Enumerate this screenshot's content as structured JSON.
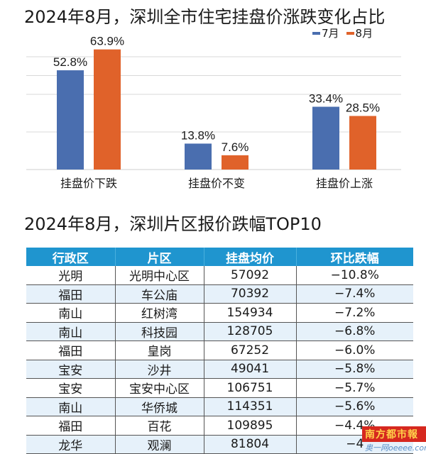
{
  "titles": {
    "chart_title": "2024年8月，深圳全市住宅挂盘价涨跌变化占比",
    "table_title": "2024年8月，深圳片区报价跌幅TOP10"
  },
  "colors": {
    "july": "#4a6eaf",
    "august": "#e0622a",
    "table_header": "#1f95cf",
    "table_alt_row": "#e6f1fa",
    "gridline": "#d9d9d9"
  },
  "legend": [
    {
      "label": "7月",
      "color": "#4a6eaf"
    },
    {
      "label": "8月",
      "color": "#e0622a"
    }
  ],
  "chart_data": {
    "type": "bar",
    "title": "2024年8月，深圳全市住宅挂盘价涨跌变化占比",
    "categories": [
      "挂盘价下跌",
      "挂盘价不变",
      "挂盘价上涨"
    ],
    "series": [
      {
        "name": "7月",
        "values": [
          52.8,
          13.8,
          33.4
        ],
        "labels": [
          "52.8%",
          "13.8%",
          "33.4%"
        ]
      },
      {
        "name": "8月",
        "values": [
          63.9,
          7.6,
          28.5
        ],
        "labels": [
          "63.9%",
          "7.6%",
          "28.5%"
        ]
      }
    ],
    "xlabel": "",
    "ylabel": "",
    "ylim": [
      0,
      70
    ],
    "gridlines": [
      20,
      40,
      50,
      60
    ],
    "grid": true,
    "legend_position": "top-right",
    "unit": "%"
  },
  "table": {
    "headers": [
      "行政区",
      "片区",
      "挂盘均价",
      "环比跌幅"
    ],
    "rows": [
      [
        "光明",
        "光明中心区",
        "57092",
        "−10.8%"
      ],
      [
        "福田",
        "车公庙",
        "70392",
        "−7.4%"
      ],
      [
        "南山",
        "红树湾",
        "154934",
        "−7.2%"
      ],
      [
        "南山",
        "科技园",
        "128705",
        "−6.8%"
      ],
      [
        "福田",
        "皇岗",
        "67252",
        "−6.0%"
      ],
      [
        "宝安",
        "沙井",
        "49041",
        "−5.8%"
      ],
      [
        "宝安",
        "宝安中心区",
        "106751",
        "−5.7%"
      ],
      [
        "南山",
        "华侨城",
        "114351",
        "−5.6%"
      ],
      [
        "福田",
        "百花",
        "109895",
        "−4.4%"
      ],
      [
        "龙华",
        "观澜",
        "81804",
        "−4"
      ]
    ]
  },
  "watermark": {
    "brand": "南方都市報",
    "site": "奥一网oeeee.com"
  }
}
